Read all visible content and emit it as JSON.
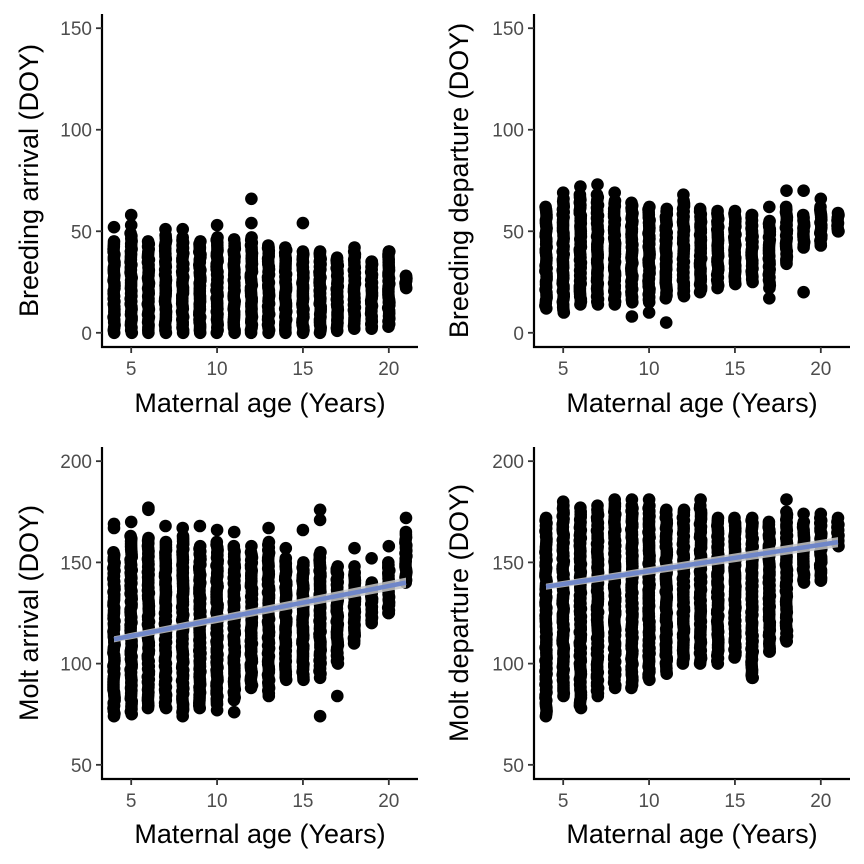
{
  "colors": {
    "points": "#000000",
    "trend_line": "#6f86c8",
    "confidence_band": "#c7c7c7"
  },
  "chart_data": [
    {
      "type": "scatter",
      "id": "breeding-arrival",
      "title": "",
      "xlabel": "Maternal age (Years)",
      "ylabel": "Breeding arrival (DOY)",
      "xlim": [
        3.3,
        21.7
      ],
      "ylim": [
        -7,
        157
      ],
      "xticks": [
        5,
        10,
        15,
        20
      ],
      "yticks": [
        0,
        50,
        100,
        150
      ],
      "ages": [
        4,
        5,
        6,
        7,
        8,
        9,
        10,
        11,
        12,
        13,
        14,
        15,
        16,
        17,
        18,
        19,
        20,
        21
      ],
      "y_min": [
        0,
        0,
        0,
        0,
        0,
        0,
        0,
        0,
        0,
        0,
        0,
        0,
        0,
        1,
        2,
        3,
        3,
        22
      ],
      "y_max": [
        45,
        49,
        45,
        48,
        47,
        45,
        47,
        44,
        47,
        43,
        42,
        40,
        39,
        37,
        40,
        35,
        40,
        28
      ],
      "outliers": [
        [
          4,
          52
        ],
        [
          5,
          58
        ],
        [
          5,
          53
        ],
        [
          6,
          44
        ],
        [
          7,
          51
        ],
        [
          8,
          51
        ],
        [
          8,
          45
        ],
        [
          9,
          42
        ],
        [
          10,
          53
        ],
        [
          10,
          46
        ],
        [
          11,
          46
        ],
        [
          12,
          66
        ],
        [
          12,
          54
        ],
        [
          12,
          43
        ],
        [
          13,
          42
        ],
        [
          14,
          41
        ],
        [
          15,
          54
        ],
        [
          16,
          40
        ],
        [
          17,
          35
        ],
        [
          17,
          13
        ],
        [
          18,
          42
        ],
        [
          18,
          17
        ],
        [
          18,
          9
        ],
        [
          19,
          35
        ],
        [
          19,
          14
        ],
        [
          19,
          2
        ],
        [
          20,
          40
        ],
        [
          20,
          15
        ],
        [
          21,
          28
        ]
      ],
      "trend": null
    },
    {
      "type": "scatter",
      "id": "breeding-departure",
      "title": "",
      "xlabel": "Maternal age (Years)",
      "ylabel": "Breeding departure (DOY)",
      "xlim": [
        3.3,
        21.7
      ],
      "ylim": [
        -7,
        157
      ],
      "xticks": [
        5,
        10,
        15,
        20
      ],
      "yticks": [
        0,
        50,
        100,
        150
      ],
      "ages": [
        4,
        5,
        6,
        7,
        8,
        9,
        10,
        11,
        12,
        13,
        14,
        15,
        16,
        17,
        18,
        19,
        20,
        21
      ],
      "y_min": [
        12,
        10,
        14,
        14,
        14,
        15,
        15,
        17,
        18,
        20,
        22,
        24,
        25,
        22,
        35,
        42,
        44,
        50
      ],
      "y_max": [
        62,
        66,
        68,
        68,
        65,
        64,
        62,
        61,
        65,
        61,
        60,
        60,
        58,
        55,
        62,
        58,
        62,
        58
      ],
      "outliers": [
        [
          5,
          69
        ],
        [
          6,
          72
        ],
        [
          7,
          73
        ],
        [
          8,
          69
        ],
        [
          9,
          8
        ],
        [
          10,
          10
        ],
        [
          11,
          5
        ],
        [
          12,
          68
        ],
        [
          16,
          58
        ],
        [
          17,
          17
        ],
        [
          17,
          62
        ],
        [
          18,
          70
        ],
        [
          18,
          36
        ],
        [
          18,
          34
        ],
        [
          19,
          70
        ],
        [
          19,
          20
        ],
        [
          19,
          52
        ],
        [
          20,
          66
        ],
        [
          20,
          43
        ],
        [
          21,
          59
        ],
        [
          21,
          50
        ]
      ],
      "trend": null
    },
    {
      "type": "scatter",
      "id": "molt-arrival",
      "title": "",
      "xlabel": "Maternal age (Years)",
      "ylabel": "Molt arrival (DOY)",
      "xlim": [
        3.3,
        21.7
      ],
      "ylim": [
        43,
        207
      ],
      "xticks": [
        5,
        10,
        15,
        20
      ],
      "yticks": [
        50,
        100,
        150,
        200
      ],
      "ages": [
        4,
        5,
        6,
        7,
        8,
        9,
        10,
        11,
        12,
        13,
        14,
        15,
        16,
        17,
        18,
        19,
        20,
        21
      ],
      "y_min": [
        74,
        75,
        78,
        78,
        76,
        78,
        80,
        82,
        88,
        84,
        92,
        92,
        95,
        100,
        110,
        120,
        125,
        140
      ],
      "y_max": [
        155,
        163,
        162,
        160,
        163,
        158,
        160,
        158,
        155,
        160,
        152,
        150,
        155,
        148,
        145,
        140,
        150,
        165
      ],
      "outliers": [
        [
          4,
          169
        ],
        [
          4,
          167
        ],
        [
          5,
          170
        ],
        [
          6,
          177
        ],
        [
          6,
          176
        ],
        [
          7,
          168
        ],
        [
          8,
          74
        ],
        [
          8,
          167
        ],
        [
          9,
          168
        ],
        [
          10,
          166
        ],
        [
          10,
          77
        ],
        [
          11,
          165
        ],
        [
          11,
          76
        ],
        [
          12,
          158
        ],
        [
          13,
          167
        ],
        [
          14,
          157
        ],
        [
          15,
          166
        ],
        [
          16,
          176
        ],
        [
          16,
          171
        ],
        [
          16,
          74
        ],
        [
          16,
          93
        ],
        [
          17,
          84
        ],
        [
          17,
          145
        ],
        [
          18,
          157
        ],
        [
          18,
          148
        ],
        [
          18,
          130
        ],
        [
          19,
          152
        ],
        [
          19,
          132
        ],
        [
          20,
          158
        ],
        [
          20,
          125
        ],
        [
          21,
          172
        ],
        [
          21,
          158
        ]
      ],
      "trend": {
        "x": [
          4,
          21
        ],
        "y": [
          112,
          140
        ],
        "band": 2.5
      }
    },
    {
      "type": "scatter",
      "id": "molt-departure",
      "title": "",
      "xlabel": "Maternal age (Years)",
      "ylabel": "Molt departure (DOY)",
      "xlim": [
        3.3,
        21.7
      ],
      "ylim": [
        43,
        207
      ],
      "xticks": [
        5,
        10,
        15,
        20
      ],
      "yticks": [
        50,
        100,
        150,
        200
      ],
      "ages": [
        4,
        5,
        6,
        7,
        8,
        9,
        10,
        11,
        12,
        13,
        14,
        15,
        16,
        17,
        18,
        19,
        20,
        21
      ],
      "y_min": [
        74,
        84,
        78,
        84,
        88,
        88,
        92,
        95,
        100,
        100,
        100,
        103,
        93,
        106,
        111,
        140,
        141,
        158
      ],
      "y_max": [
        172,
        178,
        175,
        176,
        179,
        178,
        178,
        176,
        176,
        178,
        172,
        172,
        172,
        170,
        175,
        170,
        172,
        170
      ],
      "outliers": [
        [
          5,
          180
        ],
        [
          6,
          177
        ],
        [
          7,
          178
        ],
        [
          8,
          181
        ],
        [
          9,
          181
        ],
        [
          10,
          181
        ],
        [
          13,
          181
        ],
        [
          16,
          93
        ],
        [
          17,
          106
        ],
        [
          17,
          133
        ],
        [
          18,
          111
        ],
        [
          18,
          181
        ],
        [
          19,
          174
        ],
        [
          20,
          141
        ],
        [
          20,
          174
        ],
        [
          21,
          172
        ],
        [
          21,
          159
        ]
      ],
      "trend": {
        "x": [
          4,
          21
        ],
        "y": [
          138,
          160
        ],
        "band": 2.5
      }
    }
  ]
}
